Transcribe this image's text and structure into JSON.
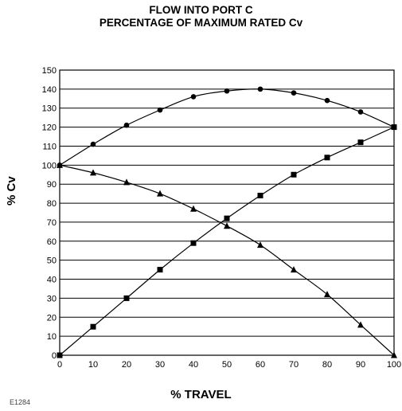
{
  "title_line1": "FLOW INTO PORT C",
  "title_line2": "PERCENTAGE OF MAXIMUM RATED Cv",
  "figure_id": "E1284",
  "chart_data": {
    "type": "line",
    "title": "FLOW INTO PORT C PERCENTAGE OF MAXIMUM RATED Cv",
    "xlabel": "% TRAVEL",
    "ylabel": "% Cv",
    "xlim": [
      0,
      100
    ],
    "ylim": [
      0,
      150
    ],
    "xticks": [
      0,
      10,
      20,
      30,
      40,
      50,
      60,
      70,
      80,
      90,
      100
    ],
    "yticks": [
      0,
      10,
      20,
      30,
      40,
      50,
      60,
      70,
      80,
      90,
      100,
      110,
      120,
      130,
      140,
      150
    ],
    "grid": "horizontal",
    "x": [
      0,
      10,
      20,
      30,
      40,
      50,
      60,
      70,
      80,
      90,
      100
    ],
    "series": [
      {
        "marker": "circle",
        "values": [
          100,
          111,
          121,
          129,
          136,
          139,
          140,
          138,
          134,
          128,
          120
        ]
      },
      {
        "marker": "square",
        "values": [
          0,
          15,
          30,
          45,
          59,
          72,
          84,
          95,
          104,
          112,
          120
        ]
      },
      {
        "marker": "triangle",
        "values": [
          100,
          96,
          91,
          85,
          77,
          68,
          58,
          45,
          32,
          16,
          0
        ]
      }
    ]
  }
}
